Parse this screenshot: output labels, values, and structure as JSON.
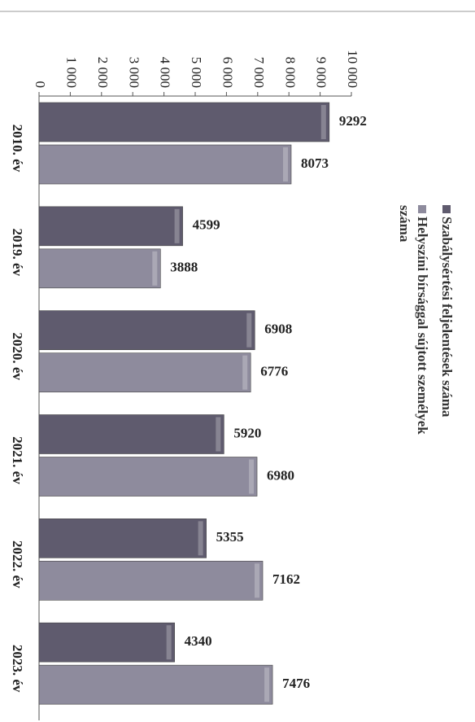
{
  "chart_data": {
    "type": "bar",
    "orientation": "horizontal",
    "categories": [
      "2010. év",
      "2019. év",
      "2020. év",
      "2021. év",
      "2022. év",
      "2023. év"
    ],
    "series": [
      {
        "name": "Szabálysértési feljelentések száma",
        "color": "#5f5b6e",
        "values": [
          9292,
          4599,
          6908,
          5920,
          5355,
          4340
        ]
      },
      {
        "name": "Helyszíni bírsággal sújtott személyek száma",
        "color": "#8e8b9d",
        "values": [
          8073,
          3888,
          6776,
          6980,
          7162,
          7476
        ]
      }
    ],
    "xlim": [
      0,
      10000
    ],
    "xticks": [
      0,
      {
        "value": 1000,
        "label": "1 000"
      },
      {
        "value": 2000,
        "label": "2 000"
      },
      {
        "value": 3000,
        "label": "3 000"
      },
      {
        "value": 4000,
        "label": "4 000"
      },
      {
        "value": 5000,
        "label": "5 000"
      },
      {
        "value": 6000,
        "label": "6 000"
      },
      {
        "value": 7000,
        "label": "7 000"
      },
      {
        "value": 8000,
        "label": "8 000"
      },
      {
        "value": 9000,
        "label": "9 000"
      },
      {
        "value": 10000,
        "label": "10 000"
      }
    ],
    "grid": false
  }
}
